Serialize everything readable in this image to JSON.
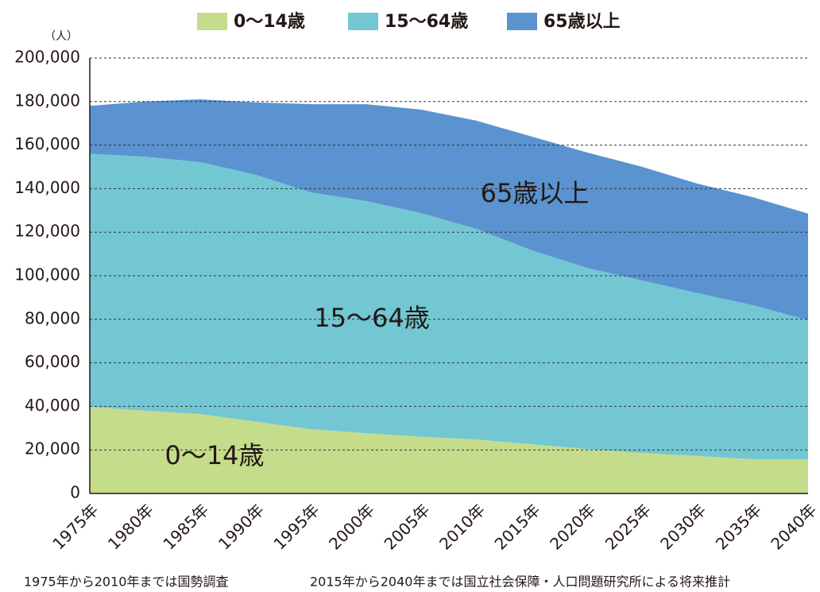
{
  "chart_data": {
    "type": "stacked_area",
    "unit_label": "（人）",
    "categories": [
      "1975年",
      "1980年",
      "1985年",
      "1990年",
      "1995年",
      "2000年",
      "2005年",
      "2010年",
      "2015年",
      "2020年",
      "2025年",
      "2030年",
      "2035年",
      "2040年"
    ],
    "series": [
      {
        "name": "0〜14歳",
        "color": "#c5dc8b",
        "values": [
          39800,
          38000,
          36500,
          33000,
          29500,
          27700,
          26000,
          24800,
          22600,
          20400,
          18600,
          17200,
          15700,
          15700
        ]
      },
      {
        "name": "15〜64歳",
        "color": "#72c7d3",
        "values": [
          116200,
          116700,
          115700,
          113400,
          108800,
          106600,
          102800,
          96700,
          89100,
          83200,
          79200,
          74800,
          70800,
          63900
        ]
      },
      {
        "name": "65歳以上",
        "color": "#5a93cf",
        "values": [
          22000,
          25300,
          28800,
          33200,
          40500,
          44500,
          47500,
          49700,
          52200,
          53000,
          52200,
          50300,
          49600,
          48900
        ]
      }
    ],
    "ylim": [
      0,
      200000
    ],
    "yticks": [
      0,
      {
        "value": 20000,
        "label": "20,000"
      },
      {
        "value": 40000,
        "label": "40,000"
      },
      {
        "value": 60000,
        "label": "60,000"
      },
      {
        "value": 80000,
        "label": "80,000"
      },
      {
        "value": 100000,
        "label": "100,000"
      },
      {
        "value": 120000,
        "label": "120,000"
      },
      {
        "value": 140000,
        "label": "140,000"
      },
      {
        "value": 160000,
        "label": "160,000"
      },
      {
        "value": 180000,
        "label": "180,000"
      },
      {
        "value": 200000,
        "label": "200,000"
      }
    ],
    "grid": true,
    "footnotes": [
      "1975年から2010年までは国勢調査",
      "2015年から2040年までは国立社会保障・人口問題研究所による将来推計"
    ]
  }
}
